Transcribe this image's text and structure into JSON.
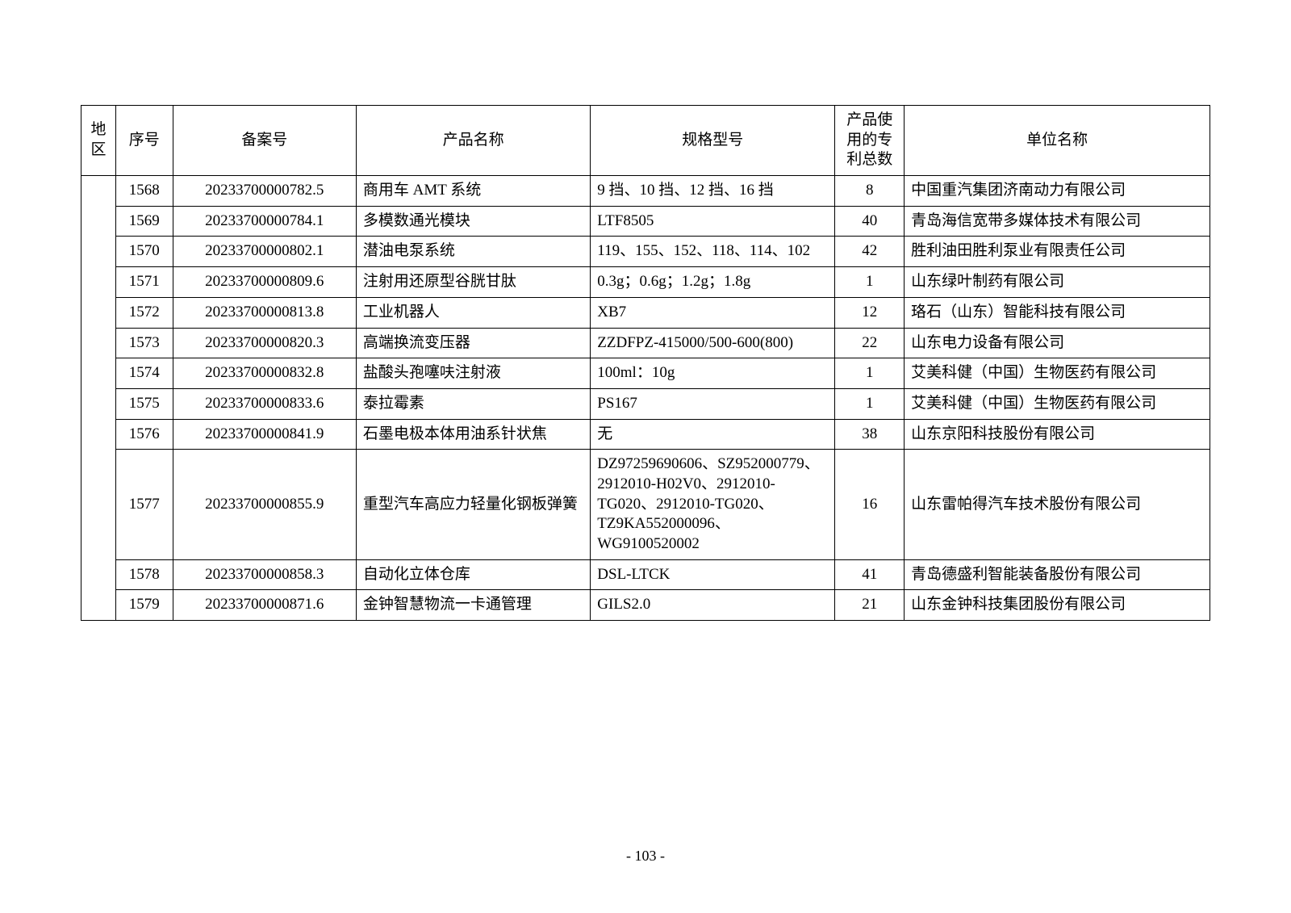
{
  "headers": {
    "region": "地区",
    "seq": "序号",
    "record": "备案号",
    "product": "产品名称",
    "spec": "规格型号",
    "patent": "产品使用的专利总数",
    "company": "单位名称"
  },
  "rows": [
    {
      "seq": "1568",
      "record": "20233700000782.5",
      "product": "商用车 AMT 系统",
      "spec": "9 挡、10 挡、12 挡、16 挡",
      "patent": "8",
      "company": "中国重汽集团济南动力有限公司"
    },
    {
      "seq": "1569",
      "record": "20233700000784.1",
      "product": "多模数通光模块",
      "spec": "LTF8505",
      "patent": "40",
      "company": "青岛海信宽带多媒体技术有限公司"
    },
    {
      "seq": "1570",
      "record": "20233700000802.1",
      "product": "潜油电泵系统",
      "spec": "119、155、152、118、114、102",
      "patent": "42",
      "company": "胜利油田胜利泵业有限责任公司"
    },
    {
      "seq": "1571",
      "record": "20233700000809.6",
      "product": "注射用还原型谷胱甘肽",
      "spec": "0.3g；0.6g；1.2g；1.8g",
      "patent": "1",
      "company": "山东绿叶制药有限公司"
    },
    {
      "seq": "1572",
      "record": "20233700000813.8",
      "product": "工业机器人",
      "spec": "XB7",
      "patent": "12",
      "company": "珞石（山东）智能科技有限公司"
    },
    {
      "seq": "1573",
      "record": "20233700000820.3",
      "product": "高端换流变压器",
      "spec": "ZZDFPZ-415000/500-600(800)",
      "patent": "22",
      "company": "山东电力设备有限公司"
    },
    {
      "seq": "1574",
      "record": "20233700000832.8",
      "product": "盐酸头孢噻呋注射液",
      "spec": "100ml：10g",
      "patent": "1",
      "company": "艾美科健（中国）生物医药有限公司"
    },
    {
      "seq": "1575",
      "record": "20233700000833.6",
      "product": "泰拉霉素",
      "spec": "PS167",
      "patent": "1",
      "company": "艾美科健（中国）生物医药有限公司"
    },
    {
      "seq": "1576",
      "record": "20233700000841.9",
      "product": "石墨电极本体用油系针状焦",
      "spec": "无",
      "patent": "38",
      "company": "山东京阳科技股份有限公司"
    },
    {
      "seq": "1577",
      "record": "20233700000855.9",
      "product": "重型汽车高应力轻量化钢板弹簧",
      "spec": "DZ97259690606、SZ952000779、2912010-H02V0、2912010-TG020、2912010-TG020、TZ9KA552000096、WG9100520002",
      "patent": "16",
      "company": "山东雷帕得汽车技术股份有限公司"
    },
    {
      "seq": "1578",
      "record": "20233700000858.3",
      "product": "自动化立体仓库",
      "spec": "DSL-LTCK",
      "patent": "41",
      "company": "青岛德盛利智能装备股份有限公司"
    },
    {
      "seq": "1579",
      "record": "20233700000871.6",
      "product": "金钟智慧物流一卡通管理",
      "spec": "GILS2.0",
      "patent": "21",
      "company": "山东金钟科技集团股份有限公司"
    }
  ],
  "pageNumber": "- 103 -"
}
